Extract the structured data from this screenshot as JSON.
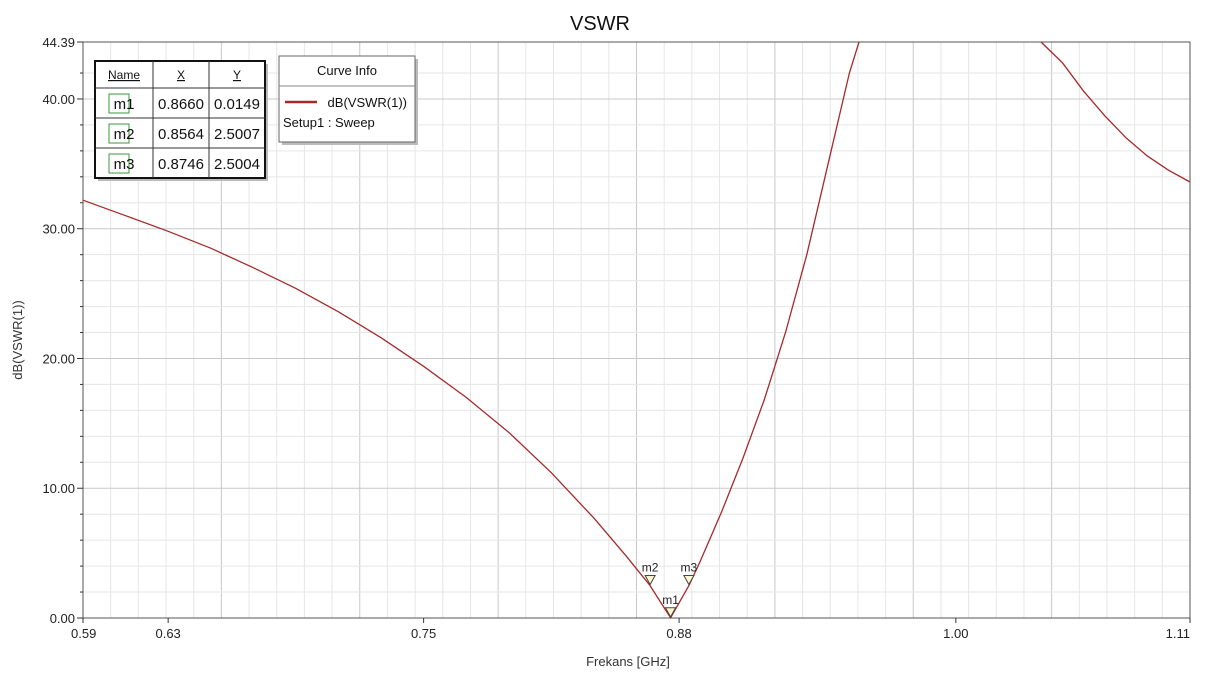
{
  "chart_data": {
    "type": "line",
    "title": "VSWR",
    "xlabel": "Frekans [GHz]",
    "ylabel": "dB(VSWR(1))",
    "xlim": [
      0.59,
      1.11
    ],
    "ylim": [
      0.0,
      44.39
    ],
    "x_ticks": [
      "0.59",
      "0.63",
      "0.75",
      "0.88",
      "1.00",
      "1.11"
    ],
    "x_tick_values": [
      0.59,
      0.63,
      0.75,
      0.87,
      1.0,
      1.11
    ],
    "y_ticks": [
      "0.00",
      "10.00",
      "20.00",
      "30.00",
      "40.00",
      "44.39"
    ],
    "y_tick_values": [
      0.0,
      10.0,
      20.0,
      30.0,
      40.0,
      44.39
    ],
    "grid": true,
    "legend_placement": "top-left",
    "series": [
      {
        "name": "dB(VSWR(1))",
        "color": "#a52a2a",
        "points": [
          [
            0.59,
            32.2
          ],
          [
            0.61,
            31.0
          ],
          [
            0.63,
            29.8
          ],
          [
            0.65,
            28.5
          ],
          [
            0.67,
            27.0
          ],
          [
            0.69,
            25.4
          ],
          [
            0.71,
            23.6
          ],
          [
            0.73,
            21.6
          ],
          [
            0.75,
            19.4
          ],
          [
            0.77,
            17.0
          ],
          [
            0.79,
            14.3
          ],
          [
            0.81,
            11.2
          ],
          [
            0.83,
            7.7
          ],
          [
            0.845,
            4.8
          ],
          [
            0.8564,
            2.5007
          ],
          [
            0.861,
            1.3
          ],
          [
            0.866,
            0.0149
          ],
          [
            0.8705,
            1.3
          ],
          [
            0.8746,
            2.5004
          ],
          [
            0.88,
            4.4
          ],
          [
            0.89,
            8.2
          ],
          [
            0.9,
            12.3
          ],
          [
            0.91,
            16.8
          ],
          [
            0.92,
            22.0
          ],
          [
            0.93,
            28.0
          ],
          [
            0.94,
            35.0
          ],
          [
            0.95,
            42.0
          ],
          [
            0.9545,
            44.39
          ]
        ]
      },
      {
        "name": "dB(VSWR(1))",
        "color": "#a52a2a",
        "points": [
          [
            1.04,
            44.39
          ],
          [
            1.05,
            42.8
          ],
          [
            1.06,
            40.6
          ],
          [
            1.07,
            38.7
          ],
          [
            1.08,
            37.0
          ],
          [
            1.09,
            35.6
          ],
          [
            1.1,
            34.5
          ],
          [
            1.11,
            33.6
          ]
        ]
      }
    ],
    "markers": [
      {
        "name": "m1",
        "x": "0.8660",
        "y": "0.0149",
        "xv": 0.866,
        "yv": 0.0149
      },
      {
        "name": "m2",
        "x": "0.8564",
        "y": "2.5007",
        "xv": 0.8564,
        "yv": 2.5007
      },
      {
        "name": "m3",
        "x": "0.8746",
        "y": "2.5004",
        "xv": 0.8746,
        "yv": 2.5004
      }
    ],
    "marker_table": {
      "headers": [
        "Name",
        "X",
        "Y"
      ]
    },
    "curve_info": {
      "header": "Curve Info",
      "entry": "dB(VSWR(1))",
      "setup": "Setup1 : Sweep",
      "color": "#a52a2a"
    }
  }
}
